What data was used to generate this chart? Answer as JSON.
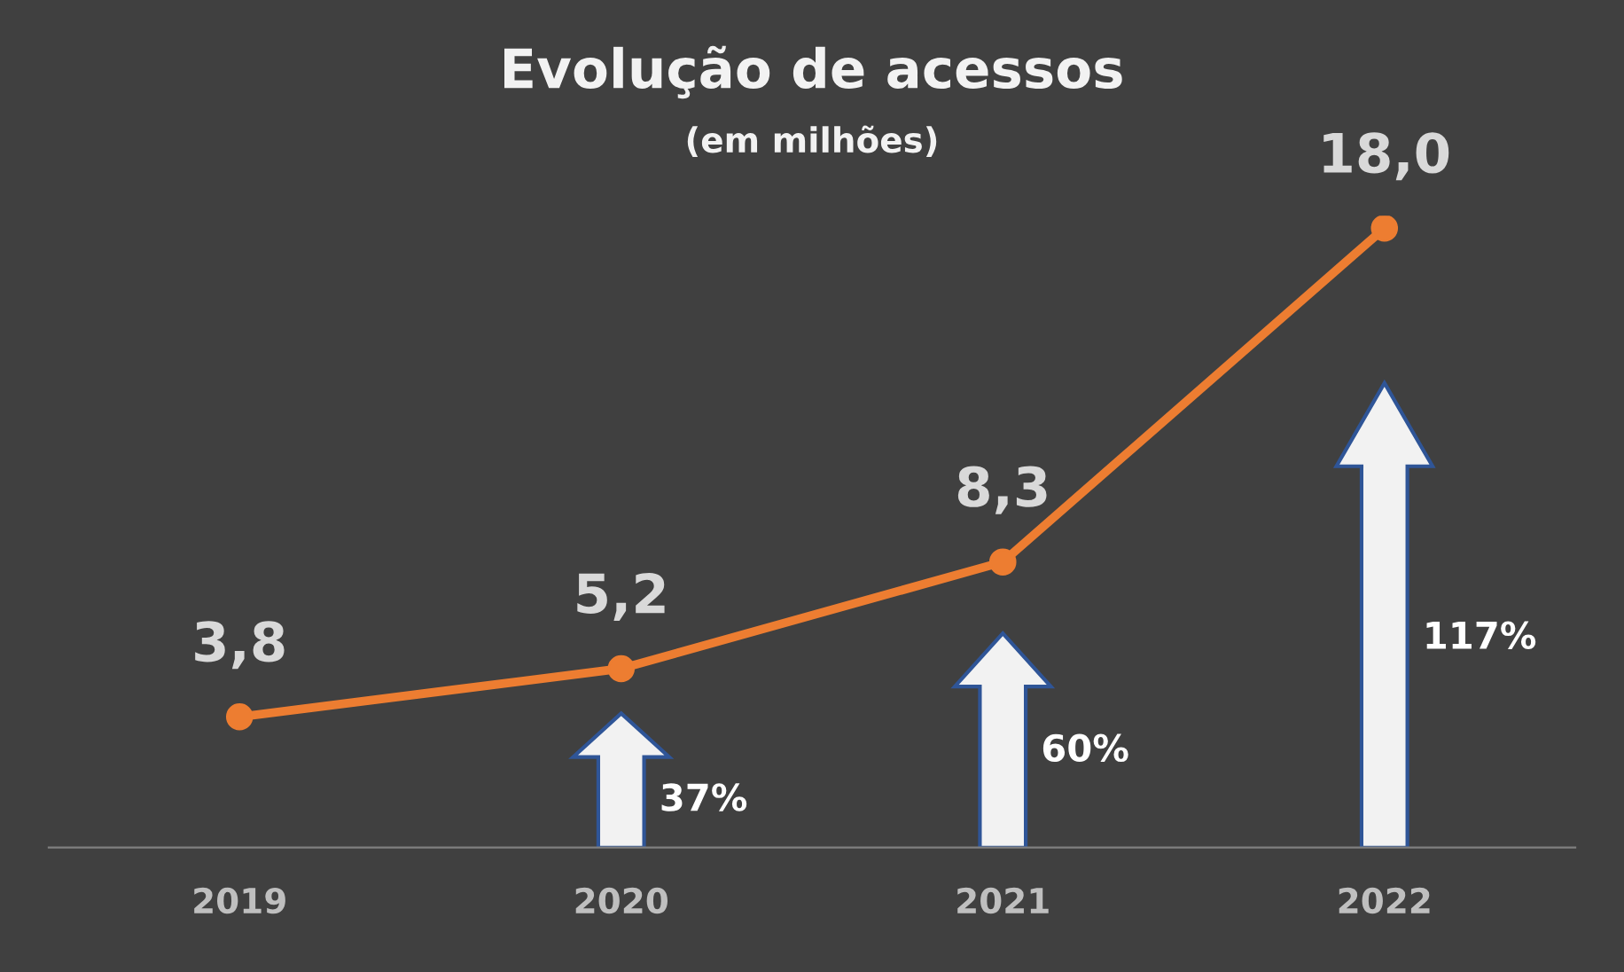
{
  "chart_data": {
    "type": "line",
    "title": "Evolução de acessos",
    "subtitle": "(em milhões)",
    "categories": [
      "2019",
      "2020",
      "2021",
      "2022"
    ],
    "series": [
      {
        "color": "#ed7d31",
        "values": [
          3.8,
          5.2,
          8.3,
          18.0
        ],
        "value_labels": [
          "3,8",
          "5,2",
          "8,3",
          "18,0"
        ]
      }
    ],
    "marker": "circle",
    "line_style": "solid",
    "grid": false,
    "legend": false,
    "tick_labels": "x",
    "annotations": [
      "37%",
      "60%",
      "117%"
    ]
  }
}
